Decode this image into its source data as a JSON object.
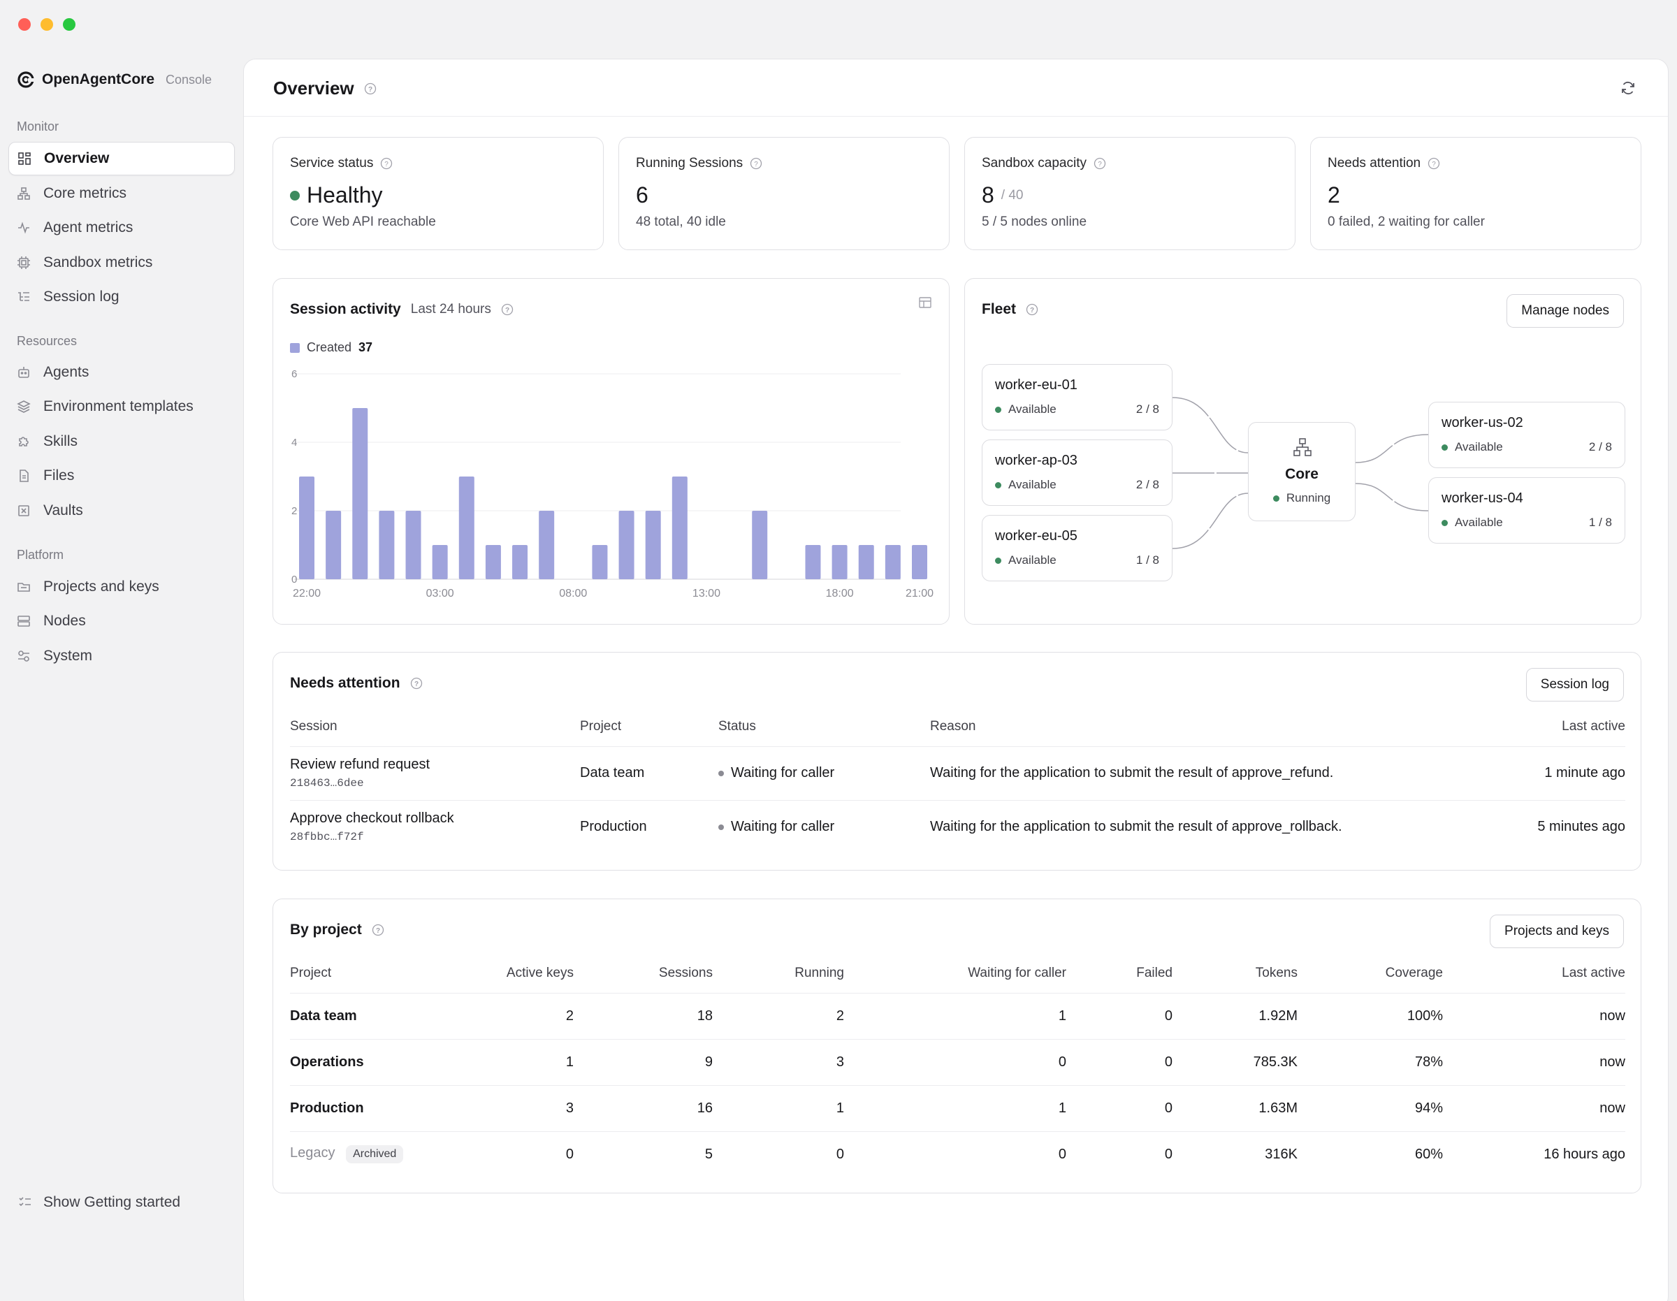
{
  "app": {
    "brand": "OpenAgentCore",
    "brand_sub": "Console"
  },
  "sidebar": {
    "sections": [
      {
        "label": "Monitor"
      },
      {
        "label": "Resources"
      },
      {
        "label": "Platform"
      }
    ],
    "items": [
      {
        "label": "Overview",
        "icon": "grid-icon",
        "active": true
      },
      {
        "label": "Core metrics",
        "icon": "hierarchy-icon"
      },
      {
        "label": "Agent metrics",
        "icon": "activity-icon"
      },
      {
        "label": "Sandbox metrics",
        "icon": "chip-icon"
      },
      {
        "label": "Session log",
        "icon": "list-tree-icon"
      },
      {
        "label": "Agents",
        "icon": "bot-icon"
      },
      {
        "label": "Environment templates",
        "icon": "layers-icon"
      },
      {
        "label": "Skills",
        "icon": "puzzle-icon"
      },
      {
        "label": "Files",
        "icon": "file-icon"
      },
      {
        "label": "Vaults",
        "icon": "vault-icon"
      },
      {
        "label": "Projects and keys",
        "icon": "folder-icon"
      },
      {
        "label": "Nodes",
        "icon": "server-icon"
      },
      {
        "label": "System",
        "icon": "settings-icon"
      }
    ],
    "getting_started": "Show Getting started"
  },
  "header": {
    "title": "Overview"
  },
  "stats": [
    {
      "label": "Service status",
      "value": "Healthy",
      "note": "Core Web API reachable",
      "dot_color": "#3d8b5f"
    },
    {
      "label": "Running Sessions",
      "value": "6",
      "note": "48 total, 40 idle"
    },
    {
      "label": "Sandbox capacity",
      "value": "8",
      "value_sub": "/ 40",
      "note": "5 / 5 nodes online"
    },
    {
      "label": "Needs attention",
      "value": "2",
      "note": "0 failed, 2 waiting for caller"
    }
  ],
  "activity": {
    "title": "Session activity",
    "range": "Last 24 hours",
    "legend_label": "Created",
    "legend_total": "37"
  },
  "chart_data": {
    "type": "bar",
    "series": [
      {
        "name": "Created",
        "values": [
          3,
          2,
          5,
          2,
          2,
          1,
          3,
          1,
          1,
          2,
          0,
          1,
          2,
          2,
          3,
          0,
          0,
          2,
          0,
          1,
          1,
          1,
          1,
          1
        ]
      }
    ],
    "x_tick_labels": [
      "22:00",
      "03:00",
      "08:00",
      "13:00",
      "18:00",
      "21:00"
    ],
    "x_tick_index": [
      0,
      5,
      10,
      15,
      20,
      23
    ],
    "y_ticks": [
      0,
      2,
      4,
      6
    ],
    "ylim": [
      0,
      6
    ],
    "color": "#9fa3dc",
    "grid": true
  },
  "fleet": {
    "title": "Fleet",
    "manage_label": "Manage nodes",
    "core": {
      "name": "Core",
      "status": "Running"
    },
    "nodes": [
      {
        "name": "worker-eu-01",
        "status": "Available",
        "capacity": "2 / 8"
      },
      {
        "name": "worker-ap-03",
        "status": "Available",
        "capacity": "2 / 8"
      },
      {
        "name": "worker-eu-05",
        "status": "Available",
        "capacity": "1 / 8"
      },
      {
        "name": "worker-us-02",
        "status": "Available",
        "capacity": "2 / 8"
      },
      {
        "name": "worker-us-04",
        "status": "Available",
        "capacity": "1 / 8"
      }
    ]
  },
  "attention": {
    "title": "Needs attention",
    "button": "Session log",
    "columns": [
      "Session",
      "Project",
      "Status",
      "Reason",
      "Last active"
    ],
    "rows": [
      {
        "session": "Review refund request",
        "id": "218463…6dee",
        "project": "Data team",
        "status": "Waiting for caller",
        "reason": "Waiting for the application to submit the result of approve_refund.",
        "last_active": "1 minute ago"
      },
      {
        "session": "Approve checkout rollback",
        "id": "28fbbc…f72f",
        "project": "Production",
        "status": "Waiting for caller",
        "reason": "Waiting for the application to submit the result of approve_rollback.",
        "last_active": "5 minutes ago"
      }
    ]
  },
  "projects": {
    "title": "By project",
    "button": "Projects and keys",
    "columns": [
      "Project",
      "Active keys",
      "Sessions",
      "Running",
      "Waiting for caller",
      "Failed",
      "Tokens",
      "Coverage",
      "Last active"
    ],
    "rows": [
      {
        "project": "Data team",
        "keys": "2",
        "sessions": "18",
        "running": "2",
        "waiting": "1",
        "failed": "0",
        "tokens": "1.92M",
        "coverage": "100%",
        "last": "now"
      },
      {
        "project": "Operations",
        "keys": "1",
        "sessions": "9",
        "running": "3",
        "waiting": "0",
        "failed": "0",
        "tokens": "785.3K",
        "coverage": "78%",
        "last": "now"
      },
      {
        "project": "Production",
        "keys": "3",
        "sessions": "16",
        "running": "1",
        "waiting": "1",
        "failed": "0",
        "tokens": "1.63M",
        "coverage": "94%",
        "last": "now"
      },
      {
        "project": "Legacy",
        "badge": "Archived",
        "keys": "0",
        "sessions": "5",
        "running": "0",
        "waiting": "0",
        "failed": "0",
        "tokens": "316K",
        "coverage": "60%",
        "last": "16 hours ago"
      }
    ]
  }
}
